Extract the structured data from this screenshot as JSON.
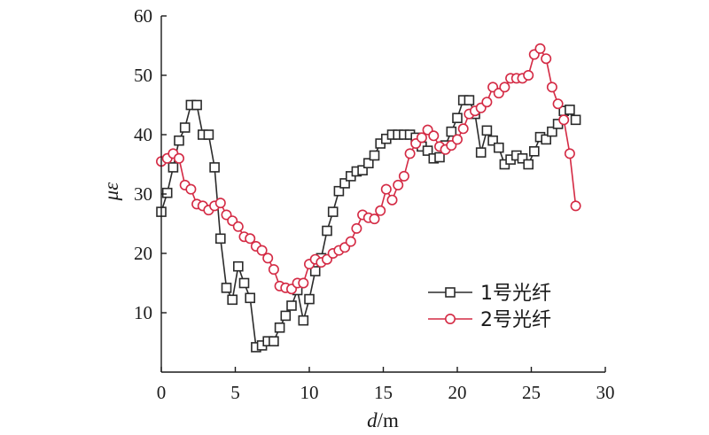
{
  "chart_data": {
    "type": "line",
    "xlabel_italic": "d",
    "xlabel_unit": "/m",
    "ylabel_greek1": "μ",
    "ylabel_greek2": "ε",
    "xlim": [
      0,
      30
    ],
    "ylim": [
      0,
      60
    ],
    "xticks": [
      0,
      5,
      10,
      15,
      20,
      25,
      30
    ],
    "yticks": [
      10,
      20,
      30,
      40,
      50,
      60
    ],
    "grid": false,
    "legend_position": "lower-right",
    "series": [
      {
        "name": "1号光纤",
        "color": "#2b2b2b",
        "marker": "square",
        "points": [
          [
            0,
            27
          ],
          [
            0.4,
            30.2
          ],
          [
            0.8,
            34.5
          ],
          [
            1.2,
            39
          ],
          [
            1.6,
            41.2
          ],
          [
            2.0,
            45
          ],
          [
            2.4,
            45
          ],
          [
            2.8,
            40
          ],
          [
            3.2,
            40
          ],
          [
            3.6,
            34.5
          ],
          [
            4.0,
            22.5
          ],
          [
            4.4,
            14.2
          ],
          [
            4.8,
            12.2
          ],
          [
            5.2,
            17.8
          ],
          [
            5.6,
            15
          ],
          [
            6.0,
            12.5
          ],
          [
            6.4,
            4.2
          ],
          [
            6.8,
            4.5
          ],
          [
            7.2,
            5.2
          ],
          [
            7.6,
            5.2
          ],
          [
            8.0,
            7.5
          ],
          [
            8.4,
            9.5
          ],
          [
            8.8,
            11.2
          ],
          [
            9.2,
            13.8
          ],
          [
            9.6,
            8.7
          ],
          [
            10.0,
            12.3
          ],
          [
            10.4,
            17
          ],
          [
            10.8,
            19.2
          ],
          [
            11.2,
            23.8
          ],
          [
            11.6,
            27
          ],
          [
            12.0,
            30.5
          ],
          [
            12.4,
            31.8
          ],
          [
            12.8,
            33
          ],
          [
            13.2,
            33.8
          ],
          [
            13.6,
            34
          ],
          [
            14.0,
            35.2
          ],
          [
            14.4,
            36.5
          ],
          [
            14.8,
            38.5
          ],
          [
            15.2,
            39.3
          ],
          [
            15.6,
            40
          ],
          [
            16.0,
            40
          ],
          [
            16.4,
            40
          ],
          [
            16.8,
            40
          ],
          [
            17.2,
            39.5
          ],
          [
            17.6,
            38
          ],
          [
            18.0,
            37.3
          ],
          [
            18.4,
            36
          ],
          [
            18.8,
            36.2
          ],
          [
            19.2,
            38.2
          ],
          [
            19.6,
            40.5
          ],
          [
            20.0,
            42.8
          ],
          [
            20.4,
            45.8
          ],
          [
            20.8,
            45.8
          ],
          [
            21.2,
            43.5
          ],
          [
            21.6,
            37
          ],
          [
            22.0,
            40.7
          ],
          [
            22.4,
            39
          ],
          [
            22.8,
            37.8
          ],
          [
            23.2,
            35
          ],
          [
            23.6,
            35.8
          ],
          [
            24.0,
            36.5
          ],
          [
            24.4,
            36
          ],
          [
            24.8,
            35
          ],
          [
            25.2,
            37.2
          ],
          [
            25.6,
            39.6
          ],
          [
            26.0,
            39.2
          ],
          [
            26.4,
            40.5
          ],
          [
            26.8,
            41.8
          ],
          [
            27.2,
            44
          ],
          [
            27.6,
            44.2
          ],
          [
            28.0,
            42.5
          ]
        ]
      },
      {
        "name": "2号光纤",
        "color": "#d42a44",
        "marker": "circle",
        "points": [
          [
            0,
            35.5
          ],
          [
            0.4,
            36
          ],
          [
            0.8,
            36.8
          ],
          [
            1.2,
            36
          ],
          [
            1.6,
            31.5
          ],
          [
            2.0,
            30.8
          ],
          [
            2.4,
            28.3
          ],
          [
            2.8,
            28
          ],
          [
            3.2,
            27.3
          ],
          [
            3.6,
            28
          ],
          [
            4.0,
            28.5
          ],
          [
            4.4,
            26.5
          ],
          [
            4.8,
            25.5
          ],
          [
            5.2,
            24.5
          ],
          [
            5.6,
            22.8
          ],
          [
            6.0,
            22.5
          ],
          [
            6.4,
            21.2
          ],
          [
            6.8,
            20.5
          ],
          [
            7.2,
            19.2
          ],
          [
            7.6,
            17.3
          ],
          [
            8.0,
            14.5
          ],
          [
            8.4,
            14.2
          ],
          [
            8.8,
            14
          ],
          [
            9.2,
            15
          ],
          [
            9.6,
            15
          ],
          [
            10.0,
            18.2
          ],
          [
            10.4,
            19
          ],
          [
            10.8,
            18.5
          ],
          [
            11.2,
            19
          ],
          [
            11.6,
            20
          ],
          [
            12.0,
            20.5
          ],
          [
            12.4,
            21
          ],
          [
            12.8,
            22
          ],
          [
            13.2,
            24.2
          ],
          [
            13.6,
            26.5
          ],
          [
            14.0,
            26
          ],
          [
            14.4,
            25.8
          ],
          [
            14.8,
            27.2
          ],
          [
            15.2,
            30.8
          ],
          [
            15.6,
            29
          ],
          [
            16.0,
            31.5
          ],
          [
            16.4,
            33
          ],
          [
            16.8,
            36.8
          ],
          [
            17.2,
            38.5
          ],
          [
            17.6,
            39.5
          ],
          [
            18.0,
            40.8
          ],
          [
            18.4,
            39.8
          ],
          [
            18.8,
            38
          ],
          [
            19.2,
            37.5
          ],
          [
            19.6,
            38.2
          ],
          [
            20.0,
            39.2
          ],
          [
            20.4,
            41
          ],
          [
            20.8,
            43.5
          ],
          [
            21.2,
            44
          ],
          [
            21.6,
            44.5
          ],
          [
            22.0,
            45.5
          ],
          [
            22.4,
            48
          ],
          [
            22.8,
            47
          ],
          [
            23.2,
            48
          ],
          [
            23.6,
            49.5
          ],
          [
            24.0,
            49.5
          ],
          [
            24.4,
            49.5
          ],
          [
            24.8,
            50
          ],
          [
            25.2,
            53.5
          ],
          [
            25.6,
            54.5
          ],
          [
            26.0,
            52.8
          ],
          [
            26.4,
            48
          ],
          [
            26.8,
            45.2
          ],
          [
            27.2,
            42.5
          ],
          [
            27.6,
            36.8
          ],
          [
            28.0,
            28
          ]
        ]
      }
    ]
  }
}
